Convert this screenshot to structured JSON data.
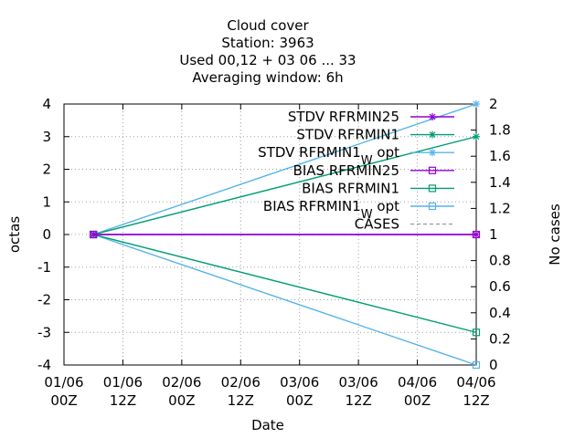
{
  "chart_data": {
    "type": "line",
    "title_lines": [
      "Cloud cover",
      "Station:     3963",
      "Used  00,12  + 03 06 ... 33",
      "Averaging window:  6h"
    ],
    "xlabel": "Date",
    "ylabel": "octas",
    "y2label": "No cases",
    "xlim": [
      0,
      84
    ],
    "ylim": [
      -4,
      4
    ],
    "y2lim": [
      0,
      2
    ],
    "x_ticks": [
      {
        "value": 0,
        "line1": "01/06",
        "line2": "00Z"
      },
      {
        "value": 12,
        "line1": "01/06",
        "line2": "12Z"
      },
      {
        "value": 24,
        "line1": "02/06",
        "line2": "00Z"
      },
      {
        "value": 36,
        "line1": "02/06",
        "line2": "12Z"
      },
      {
        "value": 48,
        "line1": "03/06",
        "line2": "00Z"
      },
      {
        "value": 60,
        "line1": "03/06",
        "line2": "12Z"
      },
      {
        "value": 72,
        "line1": "04/06",
        "line2": "00Z"
      },
      {
        "value": 84,
        "line1": "04/06",
        "line2": "12Z"
      }
    ],
    "y_ticks": [
      -4,
      -3,
      -2,
      -1,
      0,
      1,
      2,
      3,
      4
    ],
    "y2_ticks": [
      "0",
      "0.2",
      "0.4",
      "0.6",
      "0.8",
      "1",
      "1.2",
      "1.4",
      "1.6",
      "1.8",
      "2"
    ],
    "series": [
      {
        "name": "STDV RFRMIN25",
        "sub": "",
        "suffix": "",
        "color": "#9400d3",
        "marker": "star",
        "axis": "y",
        "dash": false,
        "x": [
          6,
          84
        ],
        "values": [
          0,
          0
        ]
      },
      {
        "name": "STDV RFRMIN1",
        "sub": "",
        "suffix": "",
        "color": "#009e73",
        "marker": "star",
        "axis": "y",
        "dash": false,
        "x": [
          6,
          84
        ],
        "values": [
          0,
          3
        ]
      },
      {
        "name": "STDV RFRMIN1",
        "sub": "W",
        "suffix": "opt",
        "color": "#56b4e9",
        "marker": "star",
        "axis": "y",
        "dash": false,
        "x": [
          6,
          84
        ],
        "values": [
          0,
          4
        ]
      },
      {
        "name": "BIAS RFRMIN25",
        "sub": "",
        "suffix": "",
        "color": "#9400d3",
        "marker": "square",
        "axis": "y",
        "dash": false,
        "x": [
          6,
          84
        ],
        "values": [
          0,
          0
        ]
      },
      {
        "name": "BIAS RFRMIN1",
        "sub": "",
        "suffix": "",
        "color": "#009e73",
        "marker": "square",
        "axis": "y",
        "dash": false,
        "x": [
          6,
          84
        ],
        "values": [
          0,
          -3
        ]
      },
      {
        "name": "BIAS RFRMIN1",
        "sub": "W",
        "suffix": "opt",
        "color": "#56b4e9",
        "marker": "square",
        "axis": "y",
        "dash": false,
        "x": [
          6,
          84
        ],
        "values": [
          0,
          -4
        ]
      },
      {
        "name": "CASES",
        "sub": "",
        "suffix": "",
        "color": "#a0a0a0",
        "marker": "none",
        "axis": "y2",
        "dash": true,
        "x": [
          6,
          84
        ],
        "values": [
          1,
          1
        ]
      }
    ],
    "grid": true,
    "legend_position": "top-right"
  }
}
